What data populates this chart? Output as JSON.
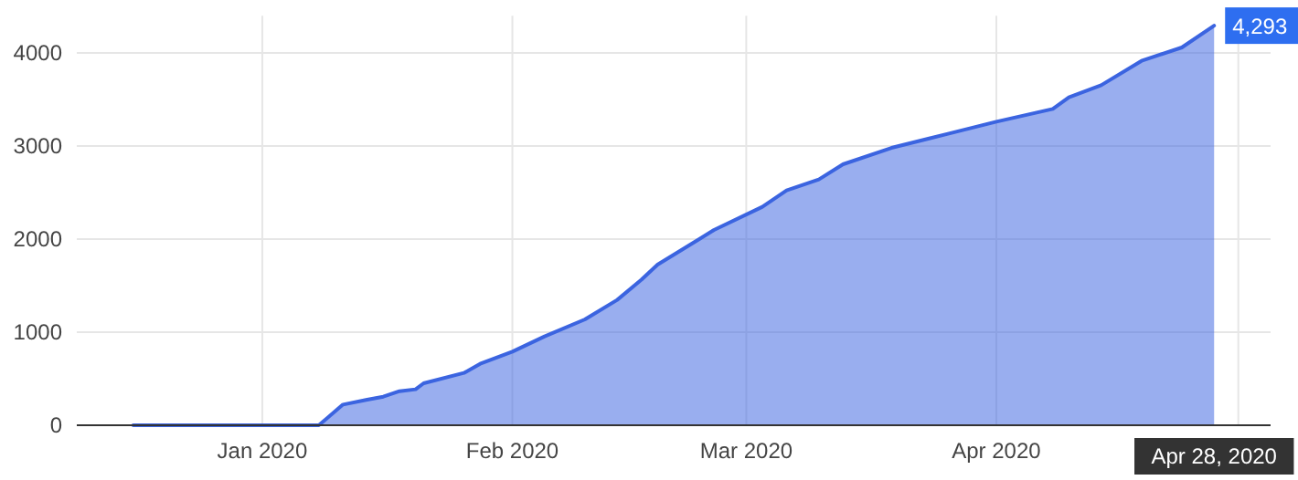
{
  "chart_data": {
    "type": "area",
    "x": [
      "2019-12-16",
      "2020-01-08",
      "2020-01-09",
      "2020-01-11",
      "2020-01-14",
      "2020-01-16",
      "2020-01-18",
      "2020-01-20",
      "2020-01-21",
      "2020-01-26",
      "2020-01-28",
      "2020-02-01",
      "2020-02-05",
      "2020-02-10",
      "2020-02-14",
      "2020-02-17",
      "2020-02-19",
      "2020-02-26",
      "2020-03-03",
      "2020-03-06",
      "2020-03-10",
      "2020-03-13",
      "2020-03-19",
      "2020-03-26",
      "2020-04-01",
      "2020-04-08",
      "2020-04-10",
      "2020-04-14",
      "2020-04-19",
      "2020-04-24",
      "2020-04-28"
    ],
    "series": [
      {
        "color": "#3b64e0",
        "values": [
          0,
          0,
          73,
          222,
          275,
          307,
          366,
          386,
          451,
          562,
          660,
          790,
          955,
          1137,
          1347,
          1563,
          1725,
          2098,
          2347,
          2524,
          2641,
          2804,
          2980,
          3131,
          3261,
          3398,
          3523,
          3653,
          3915,
          4059,
          4293
        ]
      }
    ],
    "xlim": [
      "2019-12-09",
      "2020-05-05"
    ],
    "xticks": [
      {
        "value": "2020-01-01",
        "label": "Jan 2020"
      },
      {
        "value": "2020-02-01",
        "label": "Feb 2020"
      },
      {
        "value": "2020-03-01",
        "label": "Mar 2020"
      },
      {
        "value": "2020-04-01",
        "label": "Apr 2020"
      },
      {
        "value": "2020-05-01",
        "label": null
      }
    ],
    "ylim": [
      0,
      4400
    ],
    "yticks": [
      0,
      1000,
      2000,
      3000,
      4000
    ],
    "grid": true,
    "annotations": [
      {
        "text": "4,293",
        "x": "2020-04-28",
        "y": 4293
      },
      {
        "text": "Apr 28, 2020",
        "x": "2020-04-28",
        "y": 0
      }
    ]
  }
}
